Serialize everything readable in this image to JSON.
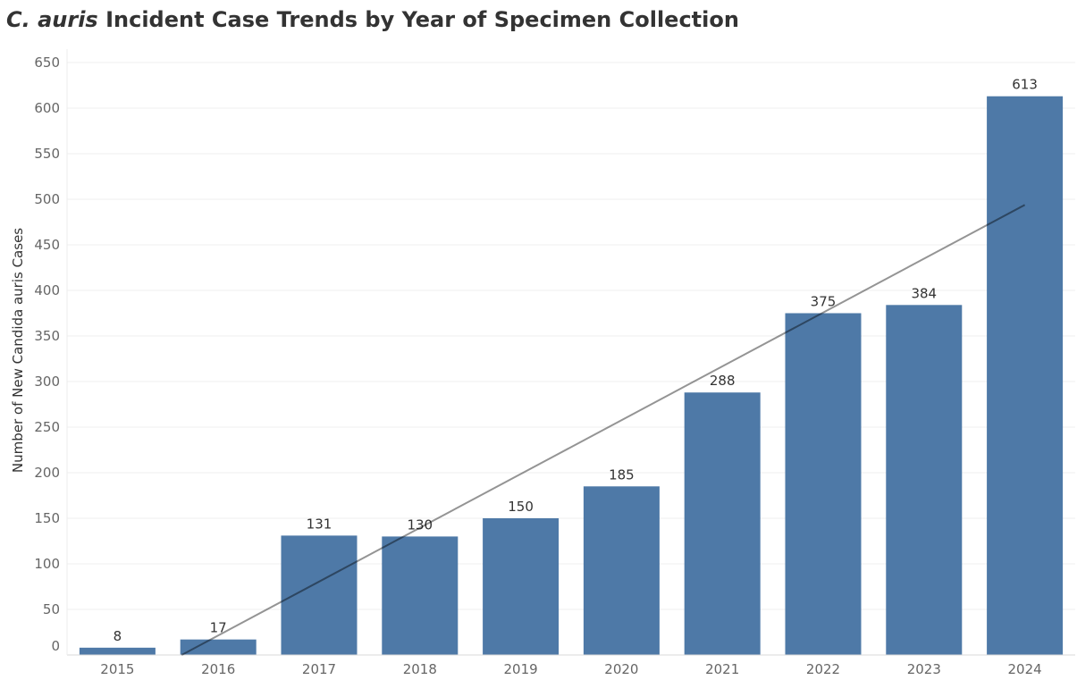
{
  "chart_data": {
    "type": "bar",
    "title_italic": "C. auris",
    "title_rest": "Incident Case Trends by Year of Specimen Collection",
    "ylabel": "Number of New Candida auris Cases",
    "xlabel": "",
    "categories": [
      "2015",
      "2016",
      "2017",
      "2018",
      "2019",
      "2020",
      "2021",
      "2022",
      "2023",
      "2024"
    ],
    "values": [
      8,
      17,
      131,
      130,
      150,
      185,
      288,
      375,
      384,
      613
    ],
    "ylim": [
      0,
      650
    ],
    "yticks": [
      0,
      50,
      100,
      150,
      200,
      250,
      300,
      350,
      400,
      450,
      500,
      550,
      600,
      650
    ],
    "grid": true,
    "legend": "none",
    "trend_line": true,
    "bar_color": "#4e79a7",
    "trend_color": "#000000"
  }
}
